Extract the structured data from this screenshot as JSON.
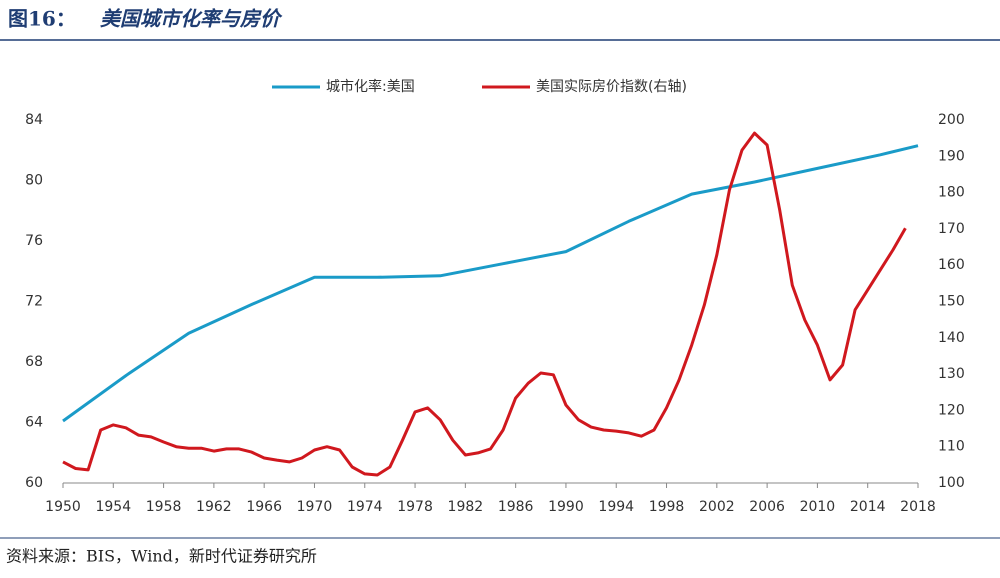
{
  "chart_data": {
    "type": "line",
    "figure_label": "图16：",
    "title": "美国城市化率与房价",
    "source": "资料来源：BIS，Wind，新时代证券研究所",
    "xlim": [
      1950,
      2018
    ],
    "xticks": [
      1950,
      1954,
      1958,
      1962,
      1966,
      1970,
      1974,
      1978,
      1982,
      1986,
      1990,
      1994,
      1998,
      2002,
      2006,
      2010,
      2014,
      2018
    ],
    "ylim": [
      60,
      84
    ],
    "yticks": [
      60,
      64,
      68,
      72,
      76,
      80,
      84
    ],
    "y2lim": [
      100,
      200
    ],
    "y2ticks": [
      100,
      110,
      120,
      130,
      140,
      150,
      160,
      170,
      180,
      190,
      200
    ],
    "series": [
      {
        "name": "城市化率:美国",
        "color": "#1a9bc8",
        "x": [
          1950,
          1955,
          1960,
          1965,
          1970,
          1975,
          1980,
          1985,
          1990,
          1995,
          2000,
          2005,
          2010,
          2015,
          2018
        ],
        "values": [
          64.1,
          67.1,
          69.9,
          71.8,
          73.6,
          73.6,
          73.7,
          74.5,
          75.3,
          77.3,
          79.1,
          79.9,
          80.8,
          81.7,
          82.3
        ]
      },
      {
        "name": "美国实际房价指数(右轴)",
        "color": "#d0181e",
        "axis": "y2",
        "x": [
          1950,
          1951,
          1952,
          1953,
          1954,
          1955,
          1956,
          1957,
          1958,
          1959,
          1960,
          1961,
          1962,
          1963,
          1964,
          1965,
          1966,
          1967,
          1968,
          1969,
          1970,
          1971,
          1972,
          1973,
          1974,
          1975,
          1976,
          1977,
          1978,
          1979,
          1980,
          1981,
          1982,
          1983,
          1984,
          1985,
          1986,
          1987,
          1988,
          1989,
          1990,
          1991,
          1992,
          1993,
          1994,
          1995,
          1996,
          1997,
          1998,
          1999,
          2000,
          2001,
          2002,
          2003,
          2004,
          2005,
          2006,
          2007,
          2008,
          2009,
          2010,
          2011,
          2012,
          2013,
          2014,
          2015,
          2016,
          2017
        ],
        "values": [
          105.8,
          104,
          103.6,
          114.6,
          116,
          115.2,
          113.2,
          112.7,
          111.3,
          110,
          109.6,
          109.6,
          108.8,
          109.4,
          109.4,
          108.5,
          106.9,
          106.3,
          105.8,
          106.9,
          109.1,
          110,
          109.1,
          104.4,
          102.5,
          102.2,
          104.4,
          111.8,
          119.6,
          120.7,
          117.4,
          111.8,
          107.7,
          108.3,
          109.4,
          114.6,
          123.4,
          127.5,
          130.3,
          129.8,
          121.5,
          117.4,
          115.4,
          114.6,
          114.3,
          113.8,
          112.9,
          114.6,
          120.7,
          128.4,
          138,
          149,
          162.8,
          180.7,
          191.7,
          196.4,
          193.1,
          175.2,
          154.5,
          144.9,
          138,
          128.4,
          132.5,
          147.7,
          153.2,
          158.7,
          164.2,
          170.2
        ]
      }
    ]
  }
}
